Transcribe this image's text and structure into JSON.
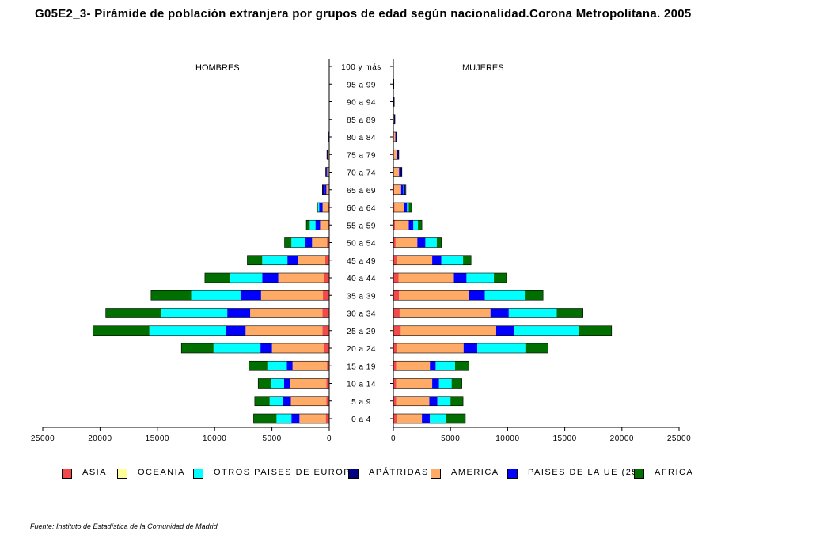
{
  "title": "G05E2_3- Pirámide de población extranjera por grupos de edad según nacionalidad.Corona Metropolitana.  2005",
  "source": "Fuente: Instituto de Estadística de la Comunidad de Madrid",
  "chart_data": {
    "type": "bar",
    "subtype": "population-pyramid-stacked",
    "left_panel_label": "HOMBRES",
    "right_panel_label": "MUJERES",
    "age_groups": [
      "0 a 4",
      "5 a 9",
      "10 a 14",
      "15 a 19",
      "20 a 24",
      "25 a 29",
      "30 a 34",
      "35 a 39",
      "40 a  44",
      "45 a 49",
      "50 a 54",
      "55 a 59",
      "60 a 64",
      "65 a 69",
      "70 a 74",
      "75 a 79",
      "80 a 84",
      "85 a 89",
      "90 a 94",
      "95 a 99",
      "100 y más"
    ],
    "x_ticks_left": [
      "25000",
      "20000",
      "15000",
      "10000",
      "5000",
      "0"
    ],
    "x_ticks_right": [
      "0",
      "5000",
      "10000",
      "15000",
      "20000",
      "25000"
    ],
    "xlim": [
      0,
      25000
    ],
    "stack_order": [
      "ASIA",
      "OCEANIA",
      "AMERICA",
      "PAISES DE LA UE (25)",
      "OTROS PAISES DE EUROPA",
      "APÁTRIDAS",
      "AFRICA"
    ],
    "legend_order": [
      "ASIA",
      "OCEANIA",
      "OTROS PAISES DE EUROPA",
      "APÁTRIDAS",
      "AMERICA",
      "PAISES DE LA UE (25)",
      "AFRICA"
    ],
    "colors": {
      "ASIA": "#f24a4a",
      "OCEANIA": "#ffff99",
      "OTROS PAISES DE EUROPA": "#00ffff",
      "APÁTRIDAS": "#000080",
      "AMERICA": "#ffaa66",
      "PAISES DE LA UE (25)": "#0000ff",
      "AFRICA": "#006f00"
    },
    "men": [
      {
        "ASIA": 300,
        "OCEANIA": 0,
        "AMERICA": 2300,
        "PAISES DE LA UE (25)": 700,
        "OTROS PAISES DE EUROPA": 1300,
        "APÁTRIDAS": 0,
        "AFRICA": 2000
      },
      {
        "ASIA": 250,
        "OCEANIA": 0,
        "AMERICA": 3100,
        "PAISES DE LA UE (25)": 700,
        "OTROS PAISES DE EUROPA": 1150,
        "APÁTRIDAS": 0,
        "AFRICA": 1300
      },
      {
        "ASIA": 250,
        "OCEANIA": 0,
        "AMERICA": 3200,
        "PAISES DE LA UE (25)": 500,
        "OTROS PAISES DE EUROPA": 1150,
        "APÁTRIDAS": 0,
        "AFRICA": 1100
      },
      {
        "ASIA": 200,
        "OCEANIA": 0,
        "AMERICA": 3000,
        "PAISES DE LA UE (25)": 500,
        "OTROS PAISES DE EUROPA": 1700,
        "APÁTRIDAS": 0,
        "AFRICA": 1600
      },
      {
        "ASIA": 450,
        "OCEANIA": 0,
        "AMERICA": 4550,
        "PAISES DE LA UE (25)": 1000,
        "OTROS PAISES DE EUROPA": 4100,
        "APÁTRIDAS": 0,
        "AFRICA": 2800
      },
      {
        "ASIA": 600,
        "OCEANIA": 0,
        "AMERICA": 6700,
        "PAISES DE LA UE (25)": 1700,
        "OTROS PAISES DE EUROPA": 6700,
        "APÁTRIDAS": 0,
        "AFRICA": 4900
      },
      {
        "ASIA": 600,
        "OCEANIA": 0,
        "AMERICA": 6300,
        "PAISES DE LA UE (25)": 2000,
        "OTROS PAISES DE EUROPA": 5800,
        "APÁTRIDAS": 0,
        "AFRICA": 4800
      },
      {
        "ASIA": 550,
        "OCEANIA": 0,
        "AMERICA": 5400,
        "PAISES DE LA UE (25)": 1800,
        "OTROS PAISES DE EUROPA": 4300,
        "APÁTRIDAS": 0,
        "AFRICA": 3500
      },
      {
        "ASIA": 450,
        "OCEANIA": 0,
        "AMERICA": 4000,
        "PAISES DE LA UE (25)": 1400,
        "OTROS PAISES DE EUROPA": 2800,
        "APÁTRIDAS": 0,
        "AFRICA": 2200
      },
      {
        "ASIA": 350,
        "OCEANIA": 0,
        "AMERICA": 2400,
        "PAISES DE LA UE (25)": 900,
        "OTROS PAISES DE EUROPA": 2200,
        "APÁTRIDAS": 0,
        "AFRICA": 1300
      },
      {
        "ASIA": 200,
        "OCEANIA": 0,
        "AMERICA": 1300,
        "PAISES DE LA UE (25)": 600,
        "OTROS PAISES DE EUROPA": 1200,
        "APÁTRIDAS": 0,
        "AFRICA": 600
      },
      {
        "ASIA": 100,
        "OCEANIA": 0,
        "AMERICA": 700,
        "PAISES DE LA UE (25)": 400,
        "OTROS PAISES DE EUROPA": 500,
        "APÁTRIDAS": 0,
        "AFRICA": 300
      },
      {
        "ASIA": 80,
        "OCEANIA": 0,
        "AMERICA": 500,
        "PAISES DE LA UE (25)": 300,
        "OTROS PAISES DE EUROPA": 100,
        "APÁTRIDAS": 0,
        "AFRICA": 80
      },
      {
        "ASIA": 50,
        "OCEANIA": 0,
        "AMERICA": 200,
        "PAISES DE LA UE (25)": 150,
        "OTROS PAISES DE EUROPA": 0,
        "APÁTRIDAS": 200,
        "AFRICA": 0
      },
      {
        "ASIA": 30,
        "OCEANIA": 0,
        "AMERICA": 150,
        "PAISES DE LA UE (25)": 50,
        "OTROS PAISES DE EUROPA": 0,
        "APÁTRIDAS": 80,
        "AFRICA": 0
      },
      {
        "ASIA": 20,
        "OCEANIA": 0,
        "AMERICA": 80,
        "PAISES DE LA UE (25)": 30,
        "OTROS PAISES DE EUROPA": 0,
        "APÁTRIDAS": 70,
        "AFRICA": 0
      },
      {
        "ASIA": 0,
        "OCEANIA": 0,
        "AMERICA": 40,
        "PAISES DE LA UE (25)": 0,
        "OTROS PAISES DE EUROPA": 0,
        "APÁTRIDAS": 60,
        "AFRICA": 0
      },
      {
        "ASIA": 0,
        "OCEANIA": 0,
        "AMERICA": 0,
        "PAISES DE LA UE (25)": 0,
        "OTROS PAISES DE EUROPA": 0,
        "APÁTRIDAS": 0,
        "AFRICA": 0
      },
      {
        "ASIA": 0,
        "OCEANIA": 0,
        "AMERICA": 0,
        "PAISES DE LA UE (25)": 0,
        "OTROS PAISES DE EUROPA": 0,
        "APÁTRIDAS": 0,
        "AFRICA": 0
      },
      {
        "ASIA": 0,
        "OCEANIA": 0,
        "AMERICA": 0,
        "PAISES DE LA UE (25)": 0,
        "OTROS PAISES DE EUROPA": 0,
        "APÁTRIDAS": 0,
        "AFRICA": 0
      },
      {
        "ASIA": 0,
        "OCEANIA": 0,
        "AMERICA": 0,
        "PAISES DE LA UE (25)": 0,
        "OTROS PAISES DE EUROPA": 0,
        "APÁTRIDAS": 0,
        "AFRICA": 0
      }
    ],
    "women": [
      {
        "ASIA": 300,
        "OCEANIA": 0,
        "AMERICA": 2200,
        "PAISES DE LA UE (25)": 700,
        "OTROS PAISES DE EUROPA": 1400,
        "APÁTRIDAS": 0,
        "AFRICA": 1700
      },
      {
        "ASIA": 250,
        "OCEANIA": 0,
        "AMERICA": 2900,
        "PAISES DE LA UE (25)": 700,
        "OTROS PAISES DE EUROPA": 1150,
        "APÁTRIDAS": 0,
        "AFRICA": 1100
      },
      {
        "ASIA": 250,
        "OCEANIA": 0,
        "AMERICA": 3150,
        "PAISES DE LA UE (25)": 600,
        "OTROS PAISES DE EUROPA": 1100,
        "APÁTRIDAS": 0,
        "AFRICA": 900
      },
      {
        "ASIA": 250,
        "OCEANIA": 0,
        "AMERICA": 2950,
        "PAISES DE LA UE (25)": 500,
        "OTROS PAISES DE EUROPA": 1700,
        "APÁTRIDAS": 0,
        "AFRICA": 1200
      },
      {
        "ASIA": 350,
        "OCEANIA": 0,
        "AMERICA": 5800,
        "PAISES DE LA UE (25)": 1200,
        "OTROS PAISES DE EUROPA": 4200,
        "APÁTRIDAS": 0,
        "AFRICA": 2000
      },
      {
        "ASIA": 650,
        "OCEANIA": 0,
        "AMERICA": 8350,
        "PAISES DE LA UE (25)": 1600,
        "OTROS PAISES DE EUROPA": 5600,
        "APÁTRIDAS": 0,
        "AFRICA": 2900
      },
      {
        "ASIA": 550,
        "OCEANIA": 0,
        "AMERICA": 7950,
        "PAISES DE LA UE (25)": 1600,
        "OTROS PAISES DE EUROPA": 4200,
        "APÁTRIDAS": 0,
        "AFRICA": 2300
      },
      {
        "ASIA": 500,
        "OCEANIA": 0,
        "AMERICA": 6100,
        "PAISES DE LA UE (25)": 1400,
        "OTROS PAISES DE EUROPA": 3500,
        "APÁTRIDAS": 0,
        "AFRICA": 1600
      },
      {
        "ASIA": 450,
        "OCEANIA": 0,
        "AMERICA": 4850,
        "PAISES DE LA UE (25)": 1100,
        "OTROS PAISES DE EUROPA": 2400,
        "APÁTRIDAS": 0,
        "AFRICA": 1100
      },
      {
        "ASIA": 300,
        "OCEANIA": 0,
        "AMERICA": 3100,
        "PAISES DE LA UE (25)": 800,
        "OTROS PAISES DE EUROPA": 1900,
        "APÁTRIDAS": 0,
        "AFRICA": 700
      },
      {
        "ASIA": 200,
        "OCEANIA": 0,
        "AMERICA": 1900,
        "PAISES DE LA UE (25)": 700,
        "OTROS PAISES DE EUROPA": 1000,
        "APÁTRIDAS": 0,
        "AFRICA": 400
      },
      {
        "ASIA": 150,
        "OCEANIA": 0,
        "AMERICA": 1200,
        "PAISES DE LA UE (25)": 400,
        "OTROS PAISES DE EUROPA": 400,
        "APÁTRIDAS": 0,
        "AFRICA": 350
      },
      {
        "ASIA": 100,
        "OCEANIA": 0,
        "AMERICA": 800,
        "PAISES DE LA UE (25)": 300,
        "OTROS PAISES DE EUROPA": 150,
        "APÁTRIDAS": 0,
        "AFRICA": 250
      },
      {
        "ASIA": 80,
        "OCEANIA": 0,
        "AMERICA": 600,
        "PAISES DE LA UE (25)": 200,
        "OTROS PAISES DE EUROPA": 50,
        "APÁTRIDAS": 120,
        "AFRICA": 50
      },
      {
        "ASIA": 50,
        "OCEANIA": 0,
        "AMERICA": 450,
        "PAISES DE LA UE (25)": 100,
        "OTROS PAISES DE EUROPA": 0,
        "APÁTRIDAS": 150,
        "AFRICA": 0
      },
      {
        "ASIA": 30,
        "OCEANIA": 0,
        "AMERICA": 300,
        "PAISES DE LA UE (25)": 50,
        "OTROS PAISES DE EUROPA": 0,
        "APÁTRIDAS": 100,
        "AFRICA": 0
      },
      {
        "ASIA": 20,
        "OCEANIA": 0,
        "AMERICA": 150,
        "PAISES DE LA UE (25)": 30,
        "OTROS PAISES DE EUROPA": 0,
        "APÁTRIDAS": 100,
        "AFRICA": 0
      },
      {
        "ASIA": 0,
        "OCEANIA": 0,
        "AMERICA": 60,
        "PAISES DE LA UE (25)": 0,
        "OTROS PAISES DE EUROPA": 0,
        "APÁTRIDAS": 80,
        "AFRICA": 0
      },
      {
        "ASIA": 0,
        "OCEANIA": 0,
        "AMERICA": 20,
        "PAISES DE LA UE (25)": 0,
        "OTROS PAISES DE EUROPA": 0,
        "APÁTRIDAS": 60,
        "AFRICA": 0
      },
      {
        "ASIA": 0,
        "OCEANIA": 0,
        "AMERICA": 0,
        "PAISES DE LA UE (25)": 0,
        "OTROS PAISES DE EUROPA": 0,
        "APÁTRIDAS": 50,
        "AFRICA": 0
      },
      {
        "ASIA": 0,
        "OCEANIA": 0,
        "AMERICA": 0,
        "PAISES DE LA UE (25)": 0,
        "OTROS PAISES DE EUROPA": 0,
        "APÁTRIDAS": 0,
        "AFRICA": 0
      }
    ]
  }
}
